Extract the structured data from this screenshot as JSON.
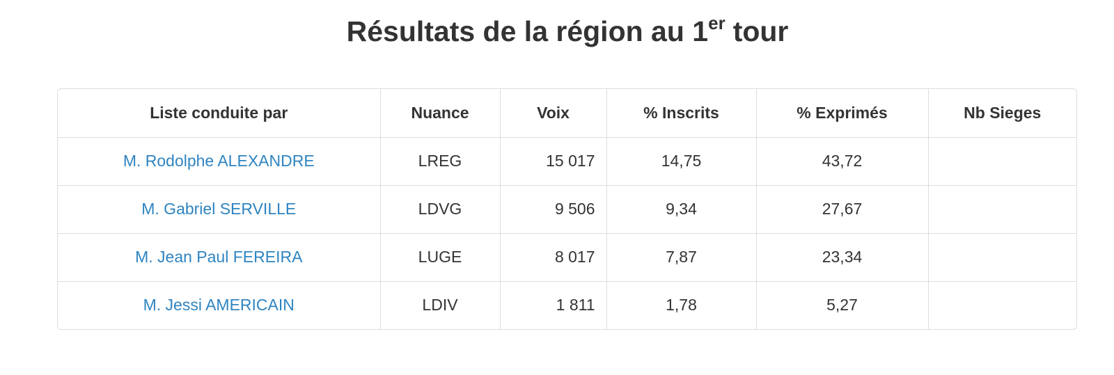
{
  "header": {
    "title": [
      "Résultats de la région au 1",
      "er",
      "tour"
    ]
  },
  "table": {
    "columns": [
      "Liste conduite par",
      "Nuance",
      "Voix",
      "% Inscrits",
      "% Exprimés",
      "Nb Sieges"
    ],
    "rows": [
      [
        "M. Rodolphe ALEXANDRE",
        "LREG",
        "15 017",
        "14,75",
        "43,72"
      ],
      [
        "M. Gabriel SERVILLE",
        "LDVG",
        "9 506",
        "9,34",
        "27,67"
      ],
      [
        "M. Jean Paul FEREIRA",
        "LUGE",
        "8 017",
        "7,87",
        "23,34"
      ],
      [
        "M. Jessi AMERICAIN",
        "LDIV",
        "1 811",
        "1,78",
        "5,27"
      ]
    ]
  }
}
